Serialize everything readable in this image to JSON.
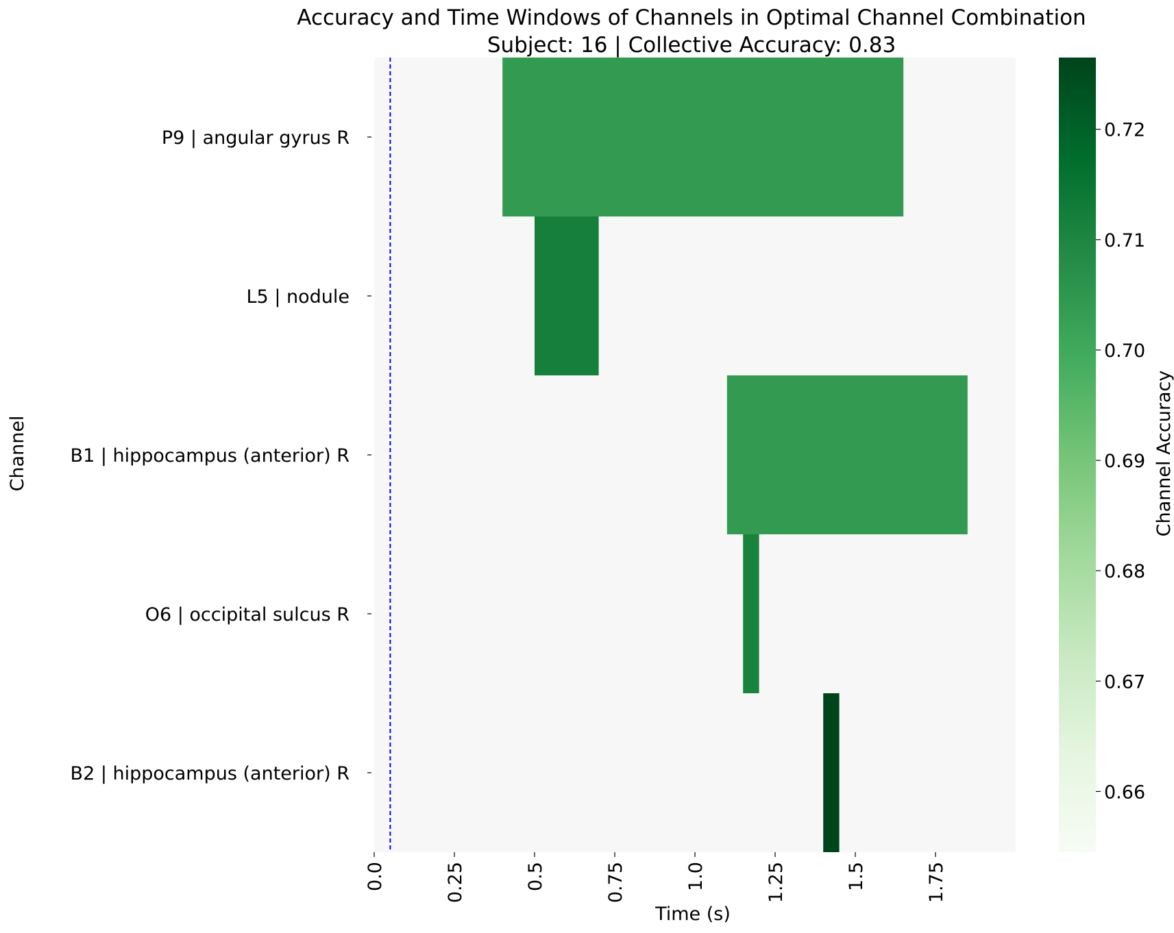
{
  "chart_data": {
    "type": "heatmap",
    "title": "Accuracy and Time Windows of Channels in Optimal Channel Combination",
    "subtitle": "Subject: 16 | Collective Accuracy: 0.83",
    "xlabel": "Time (s)",
    "ylabel": "Channel",
    "xlim": [
      0,
      2.0
    ],
    "x_ticks": [
      0.0,
      0.25,
      0.5,
      0.75,
      1.0,
      1.25,
      1.5,
      1.75
    ],
    "x_tick_labels": [
      "0.0",
      "0.25",
      "0.5",
      "0.75",
      "1.0",
      "1.25",
      "1.5",
      "1.75"
    ],
    "channels": [
      "P9 | angular gyrus R",
      "L5 | nodule",
      "B1 | hippocampus (anterior) R",
      "O6 | occipital sulcus R",
      "B2 | hippocampus (anterior) R"
    ],
    "windows": [
      {
        "channel": "P9 | angular gyrus R",
        "start": 0.4,
        "end": 1.65,
        "accuracy": 0.704
      },
      {
        "channel": "L5 | nodule",
        "start": 0.5,
        "end": 0.7,
        "accuracy": 0.712
      },
      {
        "channel": "B1 | hippocampus (anterior) R",
        "start": 1.1,
        "end": 1.85,
        "accuracy": 0.704
      },
      {
        "channel": "O6 | occipital sulcus R",
        "start": 1.15,
        "end": 1.2,
        "accuracy": 0.711
      },
      {
        "channel": "B2 | hippocampus (anterior) R",
        "start": 1.4,
        "end": 1.45,
        "accuracy": 0.7265
      }
    ],
    "reference_line": {
      "x": 0.05,
      "color": "#0000ff",
      "style": "dashed"
    },
    "colorbar": {
      "label": "Channel Accuracy",
      "range": [
        0.6545,
        0.7265
      ],
      "ticks": [
        0.66,
        0.67,
        0.68,
        0.69,
        0.7,
        0.71,
        0.72
      ],
      "tick_labels": [
        "0.66",
        "0.67",
        "0.68",
        "0.69",
        "0.70",
        "0.71",
        "0.72"
      ],
      "colormap": "Greens",
      "colors": [
        "#f7fcf5",
        "#e5f5e0",
        "#c7e9c0",
        "#a1d99b",
        "#74c476",
        "#41ab5d",
        "#238b45",
        "#006d2c",
        "#00441b"
      ]
    },
    "background_color": "#f7f7f7",
    "grid": false
  }
}
